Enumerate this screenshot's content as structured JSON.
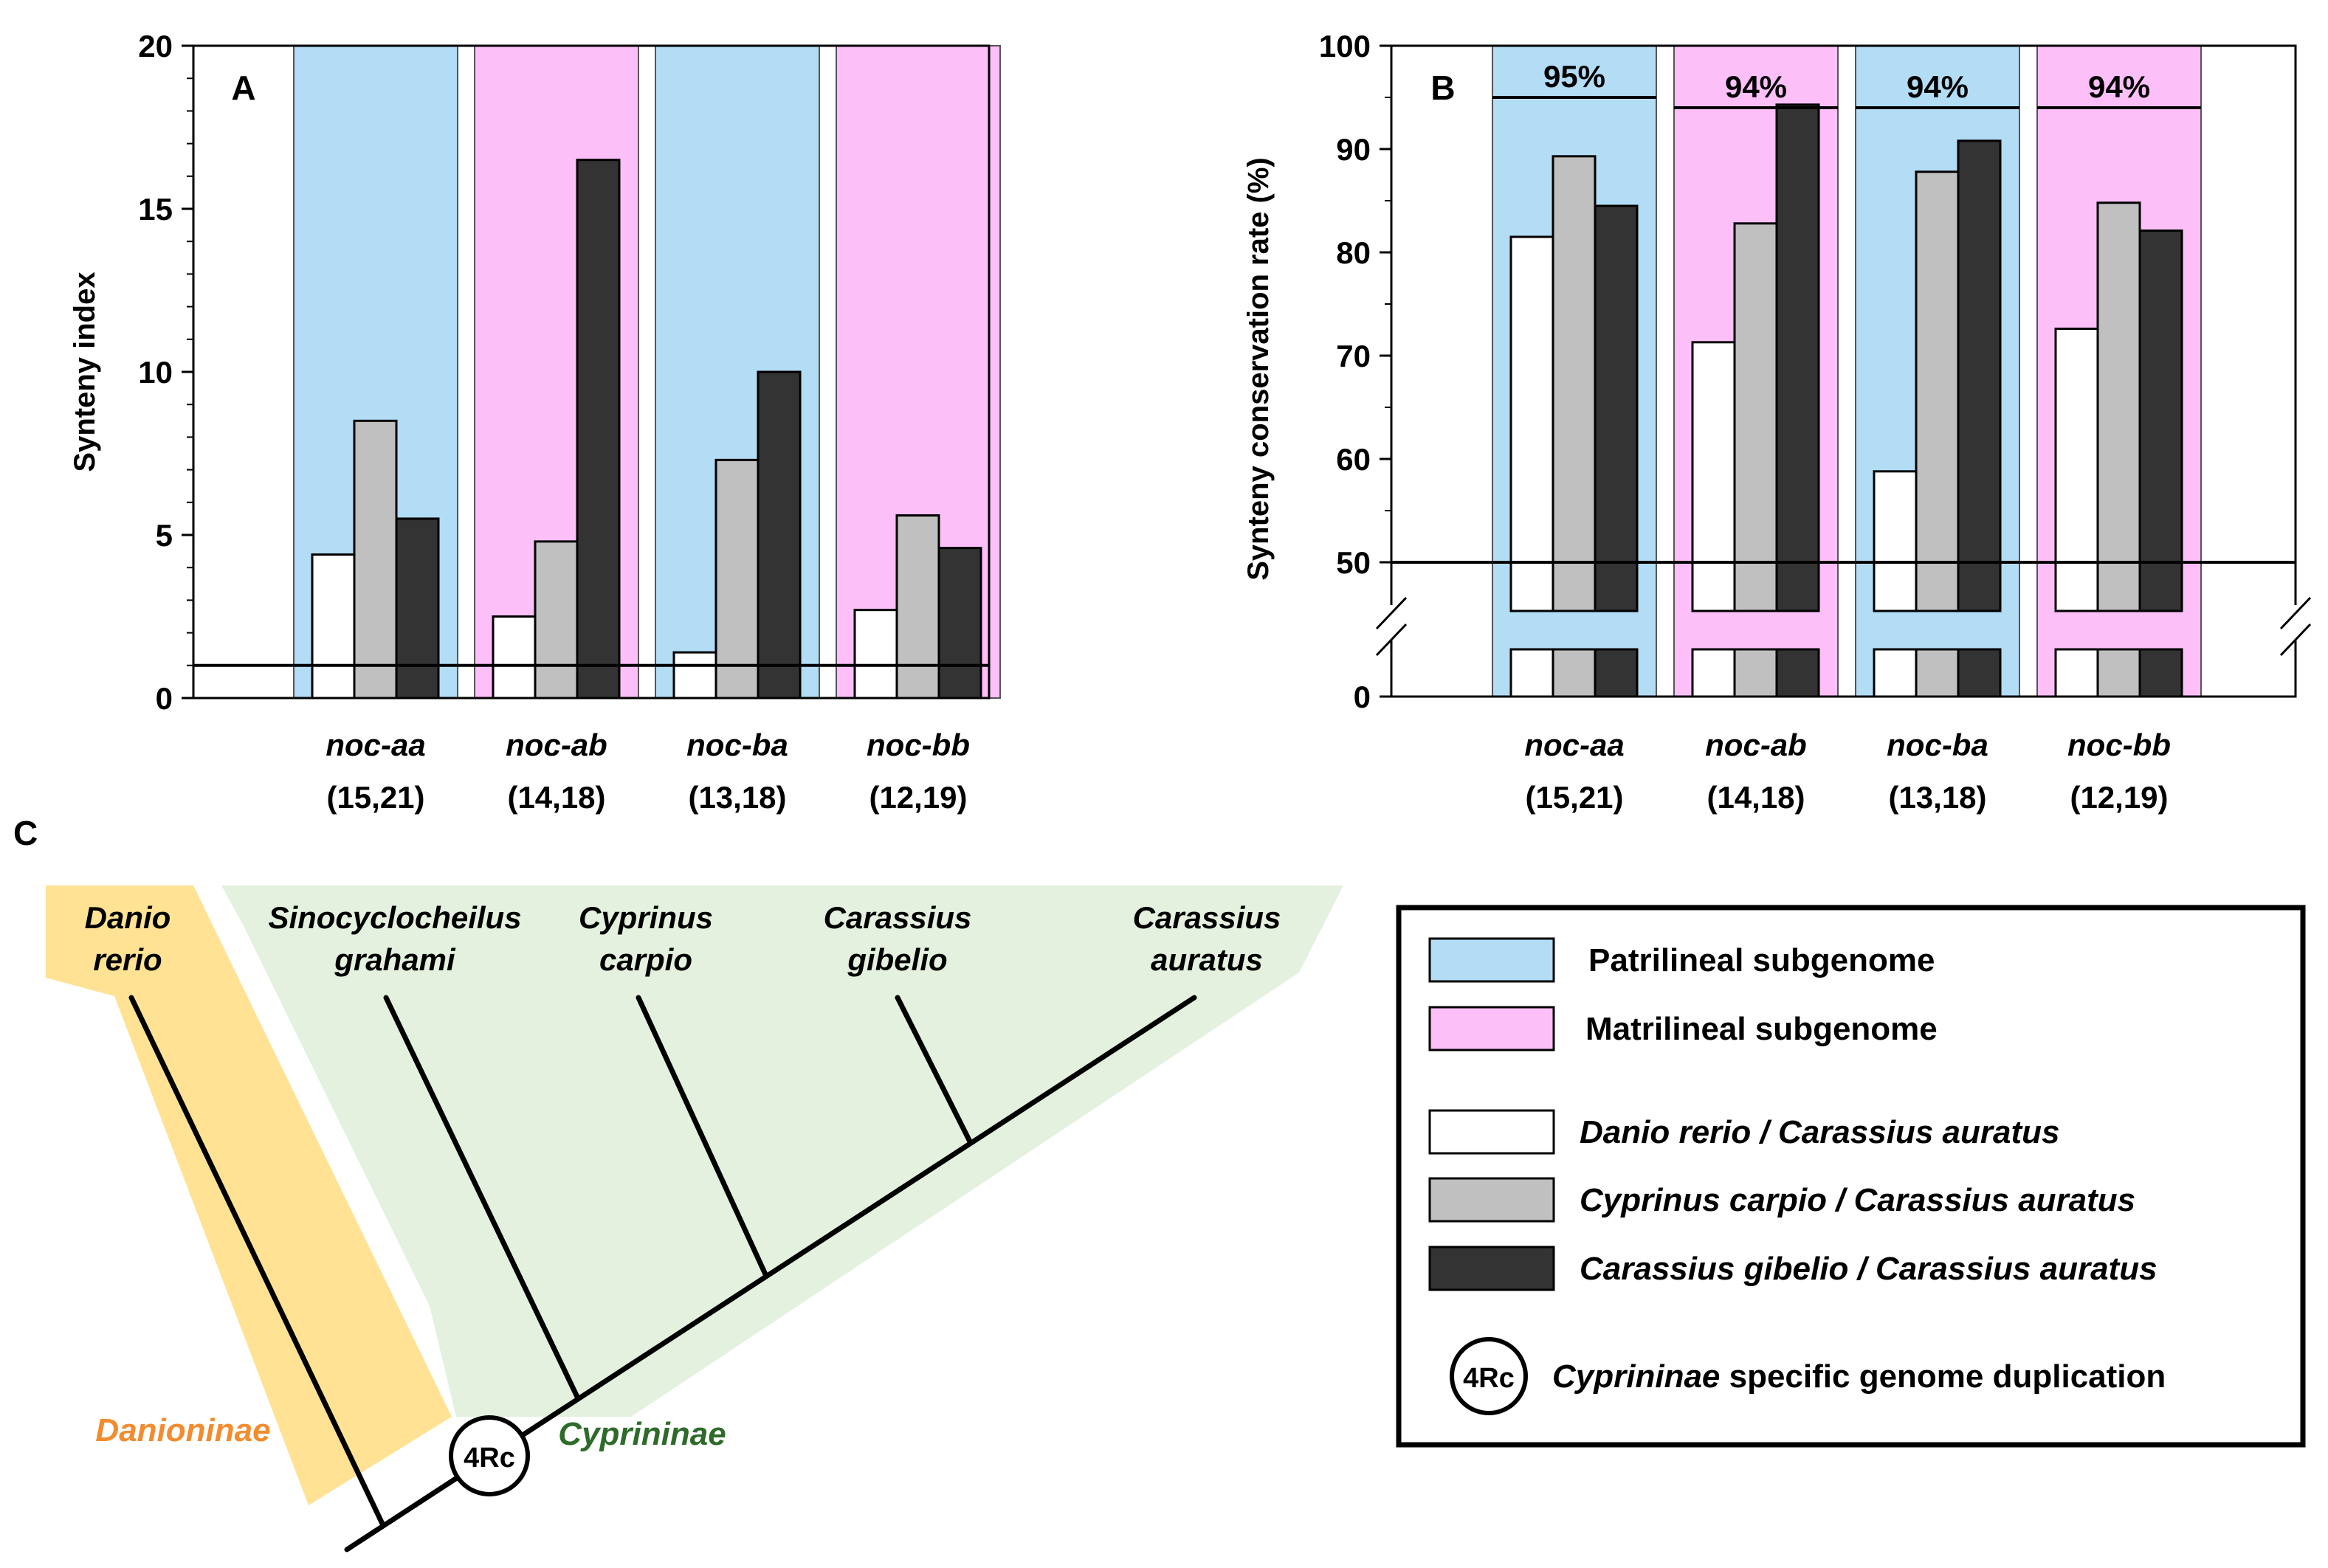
{
  "colors": {
    "patrilineal": "#b3dcf5",
    "matrilineal": "#fdbff8",
    "danio_carassius": "#ffffff",
    "cyprinus_carassius": "#c0c0c0",
    "gibelio_carassius": "#333333",
    "danioninae_band": "#ffe294",
    "cyprininae_band": "#e3f1de",
    "danioninae_text": "#f28c2f",
    "cyprininae_text": "#2e6b2a"
  },
  "chart_data": [
    {
      "panel": "A",
      "type": "bar",
      "title": "",
      "xlabel": "",
      "ylabel": "Synteny index",
      "ylim": [
        0,
        20
      ],
      "yticks": [
        "0",
        "5",
        "10",
        "15",
        "20"
      ],
      "threshold": 1,
      "categories": [
        "noc-aa",
        "noc-ab",
        "noc-ba",
        "noc-bb"
      ],
      "category_counts": [
        "(15,21)",
        "(14,18)",
        "(13,18)",
        "(12,19)"
      ],
      "category_subgenome": [
        "patrilineal",
        "matrilineal",
        "patrilineal",
        "matrilineal"
      ],
      "series": [
        {
          "name": "Danio rerio / Carassius auratus",
          "values": [
            4.4,
            2.5,
            1.4,
            2.7
          ]
        },
        {
          "name": "Cyprinus carpio / Carassius auratus",
          "values": [
            8.5,
            4.8,
            7.3,
            5.6
          ]
        },
        {
          "name": "Carassius gibelio / Carassius auratus",
          "values": [
            5.5,
            16.5,
            10.0,
            4.6
          ]
        }
      ]
    },
    {
      "panel": "B",
      "type": "bar",
      "title": "",
      "xlabel": "",
      "ylabel": "Synteny conservation rate (%)",
      "ylim": [
        0,
        100
      ],
      "axis_break": [
        0,
        45
      ],
      "yticks": [
        "0",
        "50",
        "60",
        "70",
        "80",
        "90",
        "100"
      ],
      "threshold": 50,
      "categories": [
        "noc-aa",
        "noc-ab",
        "noc-ba",
        "noc-bb"
      ],
      "category_counts": [
        "(15,21)",
        "(14,18)",
        "(13,18)",
        "(12,19)"
      ],
      "category_subgenome": [
        "patrilineal",
        "matrilineal",
        "patrilineal",
        "matrilineal"
      ],
      "group_percent_labels": [
        "95%",
        "94%",
        "94%",
        "94%"
      ],
      "series": [
        {
          "name": "Danio rerio / Carassius auratus",
          "values": [
            81.5,
            71.3,
            58.8,
            72.6
          ]
        },
        {
          "name": "Cyprinus carpio / Carassius auratus",
          "values": [
            89.3,
            82.8,
            87.8,
            84.8
          ]
        },
        {
          "name": "Carassius gibelio / Carassius auratus",
          "values": [
            84.5,
            94.3,
            90.8,
            82.1
          ]
        }
      ]
    }
  ],
  "panel_labels": {
    "a": "A",
    "b": "B",
    "c": "C"
  },
  "tree": {
    "species": [
      {
        "line1": "Danio",
        "line2": "rerio"
      },
      {
        "line1": "Sinocyclocheilus",
        "line2": "grahami"
      },
      {
        "line1": "Cyprinus",
        "line2": "carpio"
      },
      {
        "line1": "Carassius",
        "line2": "gibelio"
      },
      {
        "line1": "Carassius",
        "line2": "auratus"
      }
    ],
    "clade_danioninae": "Danioninae",
    "clade_cyprininae": "Cyprininae",
    "wgd_marker": "4Rc"
  },
  "legend": {
    "patrilineal": "Patrilineal subgenome",
    "matrilineal": "Matrilineal subgenome",
    "danio": "Danio rerio / Carassius auratus",
    "cyprinus": "Cyprinus carpio / Carassius auratus",
    "gibelio": "Carassius gibelio / Carassius auratus",
    "wgd_marker": "4Rc",
    "wgd_italic": "Cyprininae",
    "wgd_rest": " specific genome duplication"
  }
}
